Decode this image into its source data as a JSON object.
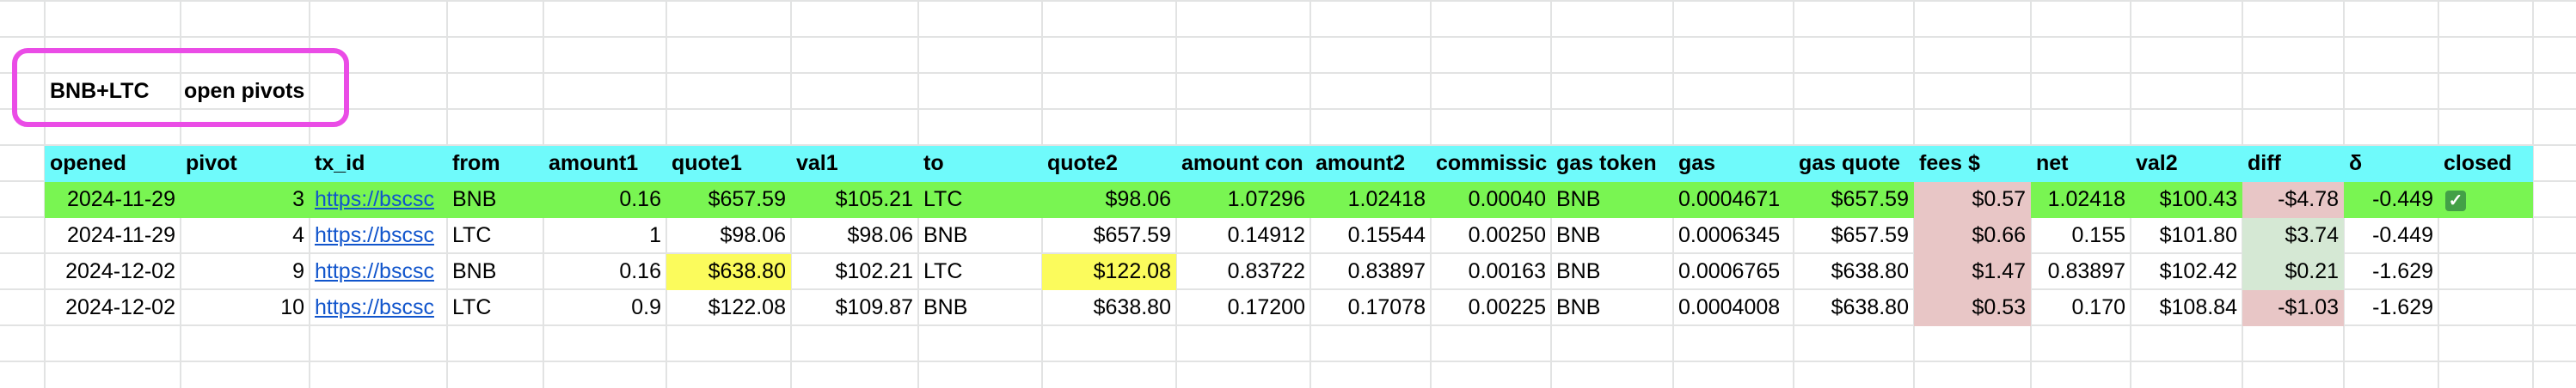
{
  "title_row": {
    "pair": "BNB+LTC",
    "label": "open pivots"
  },
  "colors": {
    "header_bg": "#6ffafb",
    "closed_row_bg": "#79f552",
    "fees_bg": "#e8c6c6",
    "diff_negative_bg": "#e8c6c6",
    "diff_positive_bg": "#d5e8d4",
    "highlight_yellow": "#fbfb5c",
    "callout_border": "#ea4ce6"
  },
  "table": {
    "columns": [
      "opened",
      "pivot",
      "tx_id",
      "from",
      "amount1",
      "quote1",
      "val1",
      "to",
      "quote2",
      "amount con",
      "amount2",
      "commissic",
      "gas token",
      "gas",
      "gas quote",
      "fees $",
      "net",
      "val2",
      "diff",
      "δ",
      "closed"
    ],
    "rows": [
      {
        "opened": "2024-11-29",
        "pivot": "3",
        "tx_id": "https://bscsc",
        "from": "BNB",
        "amount1": "0.16",
        "quote1": "$657.59",
        "val1": "$105.21",
        "to": "LTC",
        "quote2": "$98.06",
        "amount_con": "1.07296",
        "amount2": "1.02418",
        "commission": "0.00040",
        "gas_token": "BNB",
        "gas": "0.0004671",
        "gas_quote": "$657.59",
        "fees": "$0.57",
        "net": "1.02418",
        "val2": "$100.43",
        "diff": "-$4.78",
        "delta": "-0.449",
        "closed": true,
        "diff_sign": "negative",
        "row_highlight": true
      },
      {
        "opened": "2024-11-29",
        "pivot": "4",
        "tx_id": "https://bscsc",
        "from": "LTC",
        "amount1": "1",
        "quote1": "$98.06",
        "val1": "$98.06",
        "to": "BNB",
        "quote2": "$657.59",
        "amount_con": "0.14912",
        "amount2": "0.15544",
        "commission": "0.00250",
        "gas_token": "BNB",
        "gas": "0.0006345",
        "gas_quote": "$657.59",
        "fees": "$0.66",
        "net": "0.155",
        "val2": "$101.80",
        "diff": "$3.74",
        "delta": "-0.449",
        "closed": false,
        "diff_sign": "positive",
        "row_highlight": false
      },
      {
        "opened": "2024-12-02",
        "pivot": "9",
        "tx_id": "https://bscsc",
        "from": "BNB",
        "amount1": "0.16",
        "quote1": "$638.80",
        "val1": "$102.21",
        "to": "LTC",
        "quote2": "$122.08",
        "amount_con": "0.83722",
        "amount2": "0.83897",
        "commission": "0.00163",
        "gas_token": "BNB",
        "gas": "0.0006765",
        "gas_quote": "$638.80",
        "fees": "$1.47",
        "net": "0.83897",
        "val2": "$102.42",
        "diff": "$0.21",
        "delta": "-1.629",
        "closed": false,
        "diff_sign": "positive",
        "row_highlight": false,
        "yellow_cells": [
          "quote1",
          "quote2"
        ]
      },
      {
        "opened": "2024-12-02",
        "pivot": "10",
        "tx_id": "https://bscsc",
        "from": "LTC",
        "amount1": "0.9",
        "quote1": "$122.08",
        "val1": "$109.87",
        "to": "BNB",
        "quote2": "$638.80",
        "amount_con": "0.17200",
        "amount2": "0.17078",
        "commission": "0.00225",
        "gas_token": "BNB",
        "gas": "0.0004008",
        "gas_quote": "$638.80",
        "fees": "$0.53",
        "net": "0.170",
        "val2": "$108.84",
        "diff": "-$1.03",
        "delta": "-1.629",
        "closed": false,
        "diff_sign": "negative",
        "row_highlight": false
      }
    ]
  }
}
